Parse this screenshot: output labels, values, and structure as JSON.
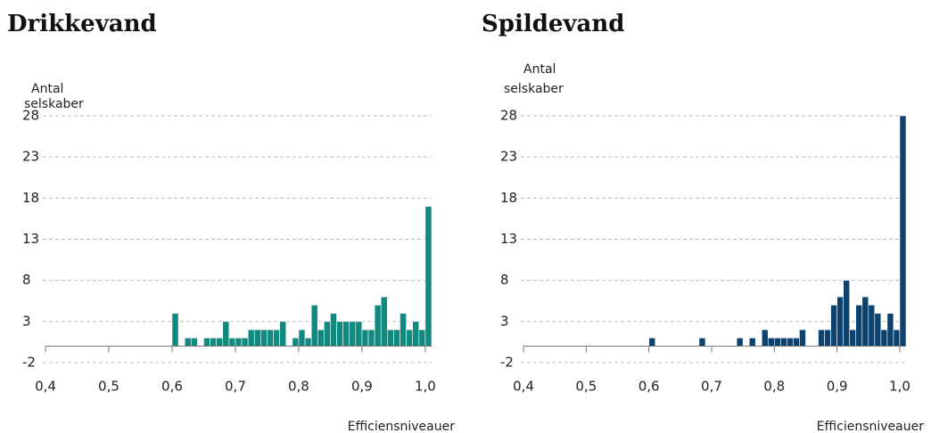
{
  "chart_data": [
    {
      "type": "histogram",
      "title": "Drikkevand",
      "ylabel": [
        "Antal",
        "selskaber"
      ],
      "xlabel": "Efficiensniveauer",
      "color": "#12897f",
      "bins": [
        0.6,
        0.61,
        0.62,
        0.63,
        0.64,
        0.65,
        0.66,
        0.67,
        0.68,
        0.69,
        0.7,
        0.71,
        0.72,
        0.73,
        0.74,
        0.75,
        0.76,
        0.77,
        0.78,
        0.79,
        0.8,
        0.81,
        0.82,
        0.83,
        0.84,
        0.85,
        0.86,
        0.87,
        0.88,
        0.89,
        0.9,
        0.91,
        0.92,
        0.93,
        0.94,
        0.95,
        0.96,
        0.97,
        0.98,
        0.99,
        1.0,
        1.01
      ],
      "values": [
        4,
        0,
        1,
        1,
        0,
        1,
        1,
        1,
        3,
        1,
        1,
        1,
        2,
        2,
        2,
        2,
        2,
        3,
        0,
        1,
        2,
        1,
        5,
        2,
        3,
        4,
        3,
        3,
        3,
        3,
        2,
        2,
        5,
        6,
        2,
        2,
        4,
        2,
        3,
        2,
        17
      ],
      "xlim": [
        0.4,
        1.01
      ],
      "ylim": [
        -2,
        28
      ],
      "xticks": [
        {
          "value": 0.4,
          "label": "0,4"
        },
        {
          "value": 0.5,
          "label": "0,5"
        },
        {
          "value": 0.6,
          "label": "0,6"
        },
        {
          "value": 0.7,
          "label": "0,7"
        },
        {
          "value": 0.8,
          "label": "0,8"
        },
        {
          "value": 0.9,
          "label": "0,9"
        },
        {
          "value": 1.0,
          "label": "1,0"
        }
      ],
      "yticks": [
        -2,
        3,
        8,
        13,
        18,
        23,
        28
      ],
      "grid": true
    },
    {
      "type": "histogram",
      "title": "Spildevand",
      "ylabel": [
        "Antal",
        "selskaber"
      ],
      "xlabel": "Efficiensniveauer",
      "color": "#0d426e",
      "bins": [
        0.6,
        0.61,
        0.62,
        0.63,
        0.64,
        0.65,
        0.66,
        0.67,
        0.68,
        0.69,
        0.7,
        0.71,
        0.72,
        0.73,
        0.74,
        0.75,
        0.76,
        0.77,
        0.78,
        0.79,
        0.8,
        0.81,
        0.82,
        0.83,
        0.84,
        0.85,
        0.86,
        0.87,
        0.88,
        0.89,
        0.9,
        0.91,
        0.92,
        0.93,
        0.94,
        0.95,
        0.96,
        0.97,
        0.98,
        0.99,
        1.0,
        1.01
      ],
      "values": [
        1,
        0,
        0,
        0,
        0,
        0,
        0,
        0,
        1,
        0,
        0,
        0,
        0,
        0,
        1,
        0,
        1,
        0,
        2,
        1,
        1,
        1,
        1,
        1,
        2,
        0,
        0,
        2,
        2,
        5,
        6,
        8,
        2,
        5,
        6,
        5,
        4,
        2,
        4,
        2,
        28
      ],
      "xlim": [
        0.4,
        1.01
      ],
      "ylim": [
        -2,
        28
      ],
      "xticks": [
        {
          "value": 0.4,
          "label": "0,4"
        },
        {
          "value": 0.5,
          "label": "0,5"
        },
        {
          "value": 0.6,
          "label": "0,6"
        },
        {
          "value": 0.7,
          "label": "0,7"
        },
        {
          "value": 0.8,
          "label": "0,8"
        },
        {
          "value": 0.9,
          "label": "0,9"
        },
        {
          "value": 1.0,
          "label": "1,0"
        }
      ],
      "yticks": [
        -2,
        3,
        8,
        13,
        18,
        23,
        28
      ],
      "grid": true
    }
  ]
}
